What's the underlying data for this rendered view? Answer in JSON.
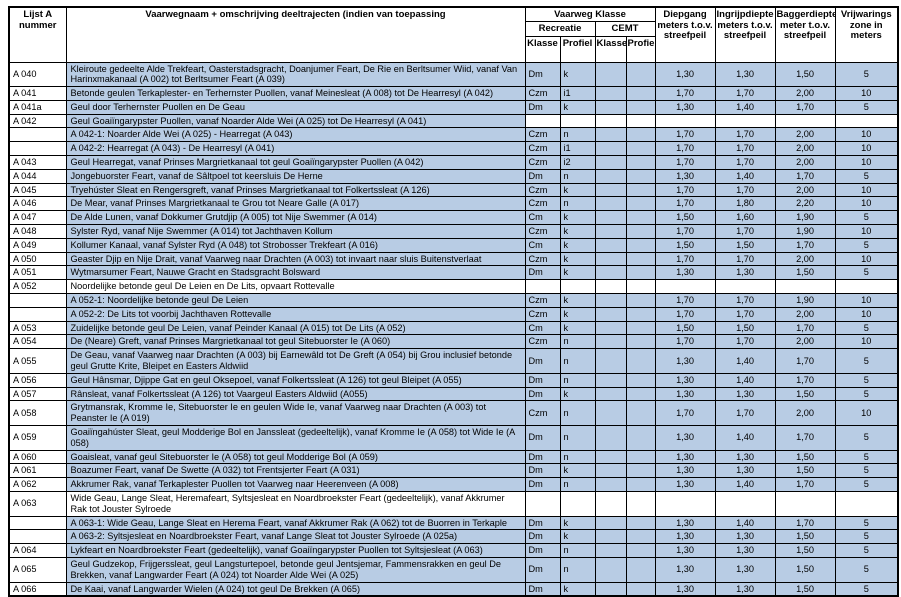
{
  "colors": {
    "row_highlight": "#b8cce4",
    "border": "#000000",
    "background": "#ffffff"
  },
  "table": {
    "header": {
      "nummer": "Lijst A nummer",
      "naam": "Vaarwegnaam + omschrijving deeltrajecten (indien van toepassing",
      "klasse_group": "Vaarweg Klasse",
      "recreatie": "Recreatie",
      "cemt": "CEMT",
      "klasse": "Klasse",
      "profiel": "Profiel",
      "diepgang": "Diepgang meters t.o.v. streefpeil",
      "ingrijpdiepte": "Ingrijpdiepte meters t.o.v. streefpeil",
      "baggerdiepte": "Baggerdiepte meter t.o.v. streefpeil",
      "vrijwaring": "Vrijwarings zone in meters"
    },
    "rows": [
      {
        "num": "A 040",
        "desc": "Kleiroute gedeelte Alde Trekfeart, Oasterstadsgracht, Doanjumer Feart, De Rie en Berltsumer Wiid, vanaf Van Harinxmakanaal (A 002) tot Berltsumer Feart (A 039)",
        "rk": "Dm",
        "rp": "k",
        "ck": "",
        "cp": "",
        "d": "1,30",
        "i": "1,30",
        "b": "1,50",
        "v": "5",
        "desc_hl": true,
        "data_hl": true
      },
      {
        "num": "A 041",
        "desc": "Betonde geulen Terkaplester- en Terhernster Puollen, vanaf Meinesleat (A 008) tot De Hearresyl (A 042)",
        "rk": "Czm",
        "rp": "i1",
        "ck": "",
        "cp": "",
        "d": "1,70",
        "i": "1,70",
        "b": "2,00",
        "v": "10",
        "desc_hl": true,
        "data_hl": true
      },
      {
        "num": "A 041a",
        "desc": "Geul door Terhernster Puollen en De Geau",
        "rk": "Dm",
        "rp": "k",
        "ck": "",
        "cp": "",
        "d": "1,30",
        "i": "1,40",
        "b": "1,70",
        "v": "5",
        "desc_hl": true,
        "data_hl": true
      },
      {
        "num": "A 042",
        "desc": "Geul Goaiïngarypster Puollen, vanaf Noarder Alde Wei (A 025) tot De Hearresyl (A 041)",
        "rk": "",
        "rp": "",
        "ck": "",
        "cp": "",
        "d": "",
        "i": "",
        "b": "",
        "v": "",
        "desc_hl": true,
        "data_hl": false
      },
      {
        "num": "",
        "desc": "A 042-1: Noarder Alde Wei (A 025) - Hearregat (A 043)",
        "rk": "Czm",
        "rp": "n",
        "ck": "",
        "cp": "",
        "d": "1,70",
        "i": "1,70",
        "b": "2,00",
        "v": "10",
        "desc_hl": true,
        "data_hl": true
      },
      {
        "num": "",
        "desc": "A 042-2: Hearregat (A 043) - De Hearresyl (A 041)",
        "rk": "Czm",
        "rp": "i1",
        "ck": "",
        "cp": "",
        "d": "1,70",
        "i": "1,70",
        "b": "2,00",
        "v": "10",
        "desc_hl": true,
        "data_hl": true
      },
      {
        "num": "A 043",
        "desc": "Geul Hearregat, vanaf Prinses Margrietkanaal tot geul Goaiïngarypster Puollen (A 042)",
        "rk": "Czm",
        "rp": "i2",
        "ck": "",
        "cp": "",
        "d": "1,70",
        "i": "1,70",
        "b": "2,00",
        "v": "10",
        "desc_hl": true,
        "data_hl": true
      },
      {
        "num": "A 044",
        "desc": "Jongebuorster Feart, vanaf de Sâltpoel tot keersluis De Herne",
        "rk": "Dm",
        "rp": "n",
        "ck": "",
        "cp": "",
        "d": "1,30",
        "i": "1,40",
        "b": "1,70",
        "v": "5",
        "desc_hl": true,
        "data_hl": true
      },
      {
        "num": "A 045",
        "desc": "Tryehúster Sleat en Rengersgreft, vanaf Prinses Margrietkanaal tot Folkertssleat (A 126)",
        "rk": "Czm",
        "rp": "k",
        "ck": "",
        "cp": "",
        "d": "1,70",
        "i": "1,70",
        "b": "2,00",
        "v": "10",
        "desc_hl": true,
        "data_hl": true
      },
      {
        "num": "A 046",
        "desc": "De Mear, vanaf Prinses Margrietkanaal te Grou tot Neare Galle (A 017)",
        "rk": "Czm",
        "rp": "n",
        "ck": "",
        "cp": "",
        "d": "1,70",
        "i": "1,80",
        "b": "2,20",
        "v": "10",
        "desc_hl": true,
        "data_hl": true
      },
      {
        "num": "A 047",
        "desc": "De Alde Lunen, vanaf Dokkumer Grutdjip (A 005) tot Nije Swemmer (A 014)",
        "rk": "Cm",
        "rp": "k",
        "ck": "",
        "cp": "",
        "d": "1,50",
        "i": "1,60",
        "b": "1,90",
        "v": "5",
        "desc_hl": true,
        "data_hl": true
      },
      {
        "num": "A 048",
        "desc": "Sylster Ryd, vanaf Nije Swemmer (A 014) tot Jachthaven Kollum",
        "rk": "Czm",
        "rp": "k",
        "ck": "",
        "cp": "",
        "d": "1,70",
        "i": "1,70",
        "b": "1,90",
        "v": "10",
        "desc_hl": true,
        "data_hl": true
      },
      {
        "num": "A 049",
        "desc": "Kollumer Kanaal, vanaf Sylster Ryd (A 048) tot Strobosser Trekfeart (A 016)",
        "rk": "Cm",
        "rp": "k",
        "ck": "",
        "cp": "",
        "d": "1,50",
        "i": "1,50",
        "b": "1,70",
        "v": "5",
        "desc_hl": true,
        "data_hl": true
      },
      {
        "num": "A 050",
        "desc": "Geaster Djip en Nije Drait, vanaf Vaarweg naar Drachten (A 003) tot invaart naar sluis Buitenstverlaat",
        "rk": "Czm",
        "rp": "k",
        "ck": "",
        "cp": "",
        "d": "1,70",
        "i": "1,70",
        "b": "2,00",
        "v": "10",
        "desc_hl": true,
        "data_hl": true
      },
      {
        "num": "A 051",
        "desc": "Wytmarsumer Feart, Nauwe Gracht en Stadsgracht Bolsward",
        "rk": "Dm",
        "rp": "k",
        "ck": "",
        "cp": "",
        "d": "1,30",
        "i": "1,30",
        "b": "1,50",
        "v": "5",
        "desc_hl": true,
        "data_hl": true
      },
      {
        "num": "A 052",
        "desc": "Noordelijke betonde geul De Leien en De Lits, opvaart Rottevalle",
        "rk": "",
        "rp": "",
        "ck": "",
        "cp": "",
        "d": "",
        "i": "",
        "b": "",
        "v": "",
        "desc_hl": false,
        "data_hl": false
      },
      {
        "num": "",
        "desc": "A 052-1: Noordelijke betonde geul De Leien",
        "rk": "Czm",
        "rp": "k",
        "ck": "",
        "cp": "",
        "d": "1,70",
        "i": "1,70",
        "b": "1,90",
        "v": "10",
        "desc_hl": true,
        "data_hl": true
      },
      {
        "num": "",
        "desc": "A 052-2: De Lits tot voorbij Jachthaven Rottevalle",
        "rk": "Czm",
        "rp": "k",
        "ck": "",
        "cp": "",
        "d": "1,70",
        "i": "1,70",
        "b": "2,00",
        "v": "10",
        "desc_hl": true,
        "data_hl": true
      },
      {
        "num": "A 053",
        "desc": "Zuidelijke betonde geul De Leien, vanaf Peinder Kanaal (A 015) tot De Lits (A 052)",
        "rk": "Cm",
        "rp": "k",
        "ck": "",
        "cp": "",
        "d": "1,50",
        "i": "1,50",
        "b": "1,70",
        "v": "5",
        "desc_hl": true,
        "data_hl": true
      },
      {
        "num": "A 054",
        "desc": "De (Neare) Greft, vanaf Prinses Margrietkanaal tot geul Sitebuorster Ie (A 060)",
        "rk": "Czm",
        "rp": "n",
        "ck": "",
        "cp": "",
        "d": "1,70",
        "i": "1,70",
        "b": "2,00",
        "v": "10",
        "desc_hl": true,
        "data_hl": true
      },
      {
        "num": "A 055",
        "desc": "De Geau, vanaf Vaarweg naar Drachten (A 003) bij Earnewâld tot De Greft (A 054) bij Grou inclusief betonde geul Grutte Krite, Bleipet en Easters Aldwiid",
        "rk": "Dm",
        "rp": "n",
        "ck": "",
        "cp": "",
        "d": "1,30",
        "i": "1,40",
        "b": "1,70",
        "v": "5",
        "desc_hl": true,
        "data_hl": true
      },
      {
        "num": "A 056",
        "desc": "Geul Hânsmar, Djippe Gat en geul Oksepoel, vanaf Folkertssleat (A 126) tot geul Bleipet (A 055)",
        "rk": "Dm",
        "rp": "n",
        "ck": "",
        "cp": "",
        "d": "1,30",
        "i": "1,40",
        "b": "1,70",
        "v": "5",
        "desc_hl": true,
        "data_hl": true
      },
      {
        "num": "A 057",
        "desc": "Rânsleat, vanaf Folkertssleat (A 126) tot Vaargeul Easters Aldwiid (A055)",
        "rk": "Dm",
        "rp": "k",
        "ck": "",
        "cp": "",
        "d": "1,30",
        "i": "1,30",
        "b": "1,50",
        "v": "5",
        "desc_hl": true,
        "data_hl": true
      },
      {
        "num": "A 058",
        "desc": "Grytmansrak, Kromme Ie, Sitebuorster Ie en geulen Wide Ie, vanaf Vaarweg naar Drachten (A 003) tot Peanster Ie (A 019)",
        "rk": "Czm",
        "rp": "n",
        "ck": "",
        "cp": "",
        "d": "1,70",
        "i": "1,70",
        "b": "2,00",
        "v": "10",
        "desc_hl": true,
        "data_hl": true
      },
      {
        "num": "A 059",
        "desc": "Goaiïngahúster Sleat, geul Modderige Bol en Janssleat (gedeeltelijk), vanaf Kromme Ie (A 058) tot Wide Ie (A 058)",
        "rk": "Dm",
        "rp": "n",
        "ck": "",
        "cp": "",
        "d": "1,30",
        "i": "1,40",
        "b": "1,70",
        "v": "5",
        "desc_hl": true,
        "data_hl": true
      },
      {
        "num": "A 060",
        "desc": "Goaisleat, vanaf geul Sitebuorster Ie (A 058) tot geul Modderige Bol (A 059)",
        "rk": "Dm",
        "rp": "n",
        "ck": "",
        "cp": "",
        "d": "1,30",
        "i": "1,30",
        "b": "1,50",
        "v": "5",
        "desc_hl": true,
        "data_hl": true
      },
      {
        "num": "A 061",
        "desc": "Boazumer Feart, vanaf De Swette (A 032) tot Frentsjerter Feart (A 031)",
        "rk": "Dm",
        "rp": "k",
        "ck": "",
        "cp": "",
        "d": "1,30",
        "i": "1,30",
        "b": "1,50",
        "v": "5",
        "desc_hl": true,
        "data_hl": true
      },
      {
        "num": "A 062",
        "desc": "Akkrumer Rak, vanaf Terkaplester Puollen tot Vaarweg naar Heerenveen (A 008)",
        "rk": "Dm",
        "rp": "n",
        "ck": "",
        "cp": "",
        "d": "1,30",
        "i": "1,40",
        "b": "1,70",
        "v": "5",
        "desc_hl": true,
        "data_hl": true
      },
      {
        "num": "A 063",
        "desc": "Wide Geau, Lange Sleat, Heremafeart, Syltsjesleat en Noardbroekster Feart (gedeeltelijk), vanaf Akkrumer Rak tot Jouster Sylroede",
        "rk": "",
        "rp": "",
        "ck": "",
        "cp": "",
        "d": "",
        "i": "",
        "b": "",
        "v": "",
        "desc_hl": false,
        "data_hl": false
      },
      {
        "num": "",
        "desc": "A 063-1: Wide Geau, Lange Sleat en Herema Feart, vanaf Akkrumer Rak (A 062) tot de Buorren in Terkaple",
        "rk": "Dm",
        "rp": "k",
        "ck": "",
        "cp": "",
        "d": "1,30",
        "i": "1,40",
        "b": "1,70",
        "v": "5",
        "desc_hl": true,
        "data_hl": true
      },
      {
        "num": "",
        "desc": "A 063-2: Syltsjesleat en Noardbroekster Feart, vanaf Lange Sleat tot Jouster Sylroede (A 025a)",
        "rk": "Dm",
        "rp": "k",
        "ck": "",
        "cp": "",
        "d": "1,30",
        "i": "1,30",
        "b": "1,50",
        "v": "5",
        "desc_hl": true,
        "data_hl": true
      },
      {
        "num": "A 064",
        "desc": "Lykfeart en Noardbroekster Feart (gedeeltelijk), vanaf Goaiïngarypster Puollen tot Syltsjesleat (A 063)",
        "rk": "Dm",
        "rp": "n",
        "ck": "",
        "cp": "",
        "d": "1,30",
        "i": "1,30",
        "b": "1,50",
        "v": "5",
        "desc_hl": true,
        "data_hl": true
      },
      {
        "num": "A 065",
        "desc": "Geul Gudzekop, Frijgerssleat, geul Langsturtepoel, betonde geul Jentsjemar, Fammensrakken en geul De Brekken, vanaf Langwarder Feart (A 024) tot Noarder Alde Wei (A 025)",
        "rk": "Dm",
        "rp": "n",
        "ck": "",
        "cp": "",
        "d": "1,30",
        "i": "1,30",
        "b": "1,50",
        "v": "5",
        "desc_hl": true,
        "data_hl": true
      },
      {
        "num": "A 066",
        "desc": "De Kaai, vanaf Langwarder Wielen (A 024) tot geul De Brekken (A 065)",
        "rk": "Dm",
        "rp": "k",
        "ck": "",
        "cp": "",
        "d": "1,30",
        "i": "1,30",
        "b": "1,50",
        "v": "5",
        "desc_hl": true,
        "data_hl": true
      }
    ]
  }
}
